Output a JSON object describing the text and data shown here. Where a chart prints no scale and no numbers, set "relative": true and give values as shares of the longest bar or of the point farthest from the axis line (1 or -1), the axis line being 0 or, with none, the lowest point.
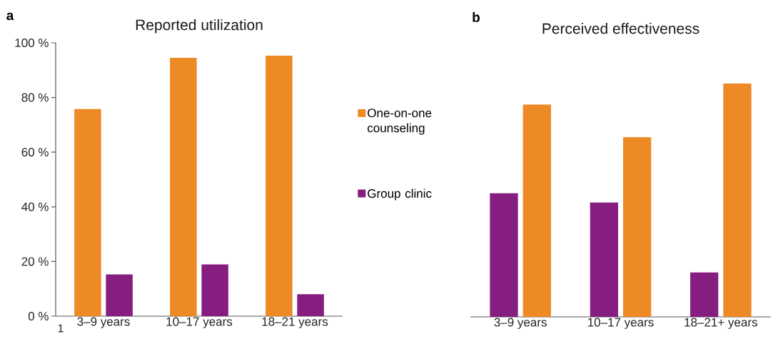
{
  "chart_data": [
    {
      "type": "bar",
      "title": "Reported utilization",
      "categories": [
        "3–9 years",
        "10–17 years",
        "18–21 years"
      ],
      "series": [
        {
          "name": "One-on-one counseling",
          "color": "#ee8a25",
          "values": [
            75.8,
            94.5,
            95.3
          ]
        },
        {
          "name": "Group clinic",
          "color": "#861e80",
          "values": [
            15.3,
            18.9,
            8.0
          ]
        }
      ],
      "ylim": [
        0,
        100
      ],
      "yticks": [
        {
          "value": 0,
          "label": "0 %"
        },
        {
          "value": 20,
          "label": "20 %"
        },
        {
          "value": 40,
          "label": "40 %"
        },
        {
          "value": 60,
          "label": "60 %"
        },
        {
          "value": 80,
          "label": "80 %"
        },
        {
          "value": 100,
          "label": "100 %"
        }
      ],
      "legend": "right",
      "annotations": [
        "a",
        "1"
      ]
    },
    {
      "type": "bar",
      "title": "Perceived effectiveness",
      "categories": [
        "3–9 years",
        "10–17 years",
        "18–21+ years"
      ],
      "relative": true,
      "series": [
        {
          "color": "#861e80",
          "values": [
            0.53,
            0.49,
            0.19
          ]
        },
        {
          "color": "#ee8a25",
          "values": [
            0.91,
            0.77,
            1.0
          ]
        }
      ],
      "annotations": [
        "b"
      ]
    }
  ]
}
